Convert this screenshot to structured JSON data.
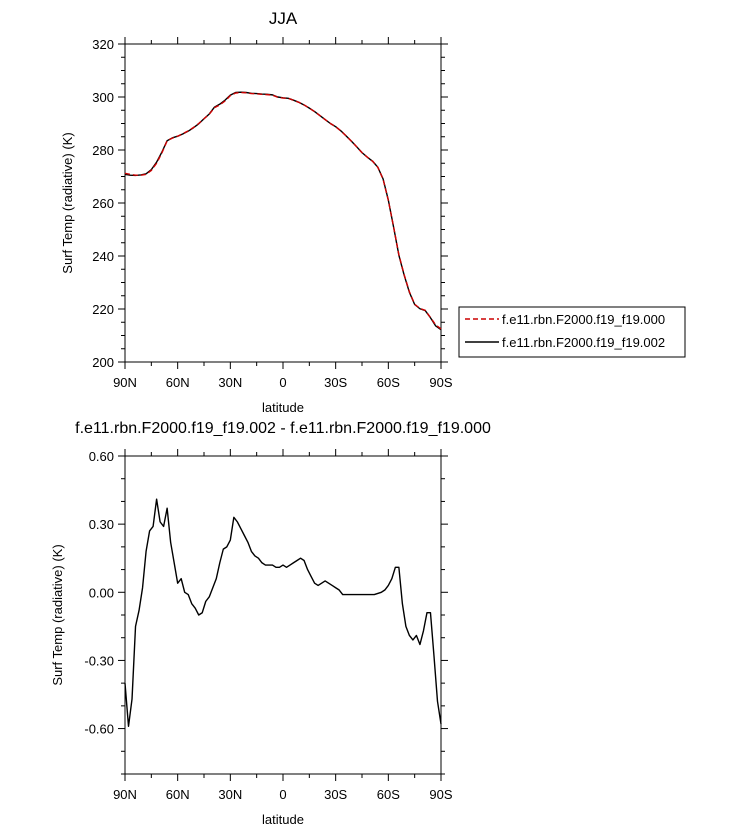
{
  "chart_data": [
    {
      "type": "line",
      "title": "JJA",
      "xlabel": "latitude",
      "ylabel": "Surf Temp (radiative) (K)",
      "xlim": [
        90,
        -90
      ],
      "ylim": [
        200,
        320
      ],
      "x_ticks": [
        90,
        60,
        30,
        0,
        -30,
        -60,
        -90
      ],
      "x_tick_labels": [
        "90N",
        "60N",
        "30N",
        "0",
        "30S",
        "60S",
        "90S"
      ],
      "y_ticks": [
        200,
        220,
        240,
        260,
        280,
        300,
        320
      ],
      "y_tick_labels": [
        "200",
        "220",
        "240",
        "260",
        "280",
        "300",
        "320"
      ],
      "legend_position": "right",
      "series": [
        {
          "name": "f.e11.rbn.F2000.f19_f19.000",
          "color": "#cc0000",
          "dash": "dashed",
          "x": [
            90,
            87,
            84,
            81,
            78,
            75,
            72,
            69,
            66,
            63,
            60,
            57,
            54,
            51,
            48,
            45,
            42,
            39,
            36,
            33,
            30,
            27,
            24,
            21,
            18,
            15,
            12,
            9,
            6,
            3,
            0,
            -3,
            -6,
            -9,
            -12,
            -15,
            -18,
            -21,
            -24,
            -27,
            -30,
            -33,
            -36,
            -39,
            -42,
            -45,
            -48,
            -51,
            -54,
            -57,
            -60,
            -63,
            -66,
            -69,
            -72,
            -75,
            -78,
            -81,
            -84,
            -87,
            -90
          ],
          "y": [
            271.2,
            270.8,
            270.5,
            270.5,
            270.8,
            272.3,
            275.0,
            278.9,
            283.5,
            284.5,
            285.2,
            286.2,
            287.2,
            288.5,
            290.0,
            291.8,
            293.5,
            296.0,
            297.0,
            298.5,
            300.5,
            301.5,
            301.7,
            301.6,
            301.3,
            301.2,
            301.0,
            300.9,
            300.7,
            299.9,
            299.6,
            299.5,
            298.8,
            298.0,
            297.0,
            295.8,
            294.5,
            293.0,
            291.5,
            290.0,
            288.8,
            287.2,
            285.3,
            283.3,
            281.2,
            279.0,
            277.3,
            275.8,
            273.5,
            269.0,
            261.0,
            251.0,
            240.5,
            233.0,
            226.5,
            221.8,
            220.2,
            219.5,
            216.8,
            214.0,
            212.5
          ]
        },
        {
          "name": "f.e11.rbn.F2000.f19_f19.002",
          "color": "#000000",
          "dash": "solid",
          "x": [
            90,
            87,
            84,
            81,
            78,
            75,
            72,
            69,
            66,
            63,
            60,
            57,
            54,
            51,
            48,
            45,
            42,
            39,
            36,
            33,
            30,
            27,
            24,
            21,
            18,
            15,
            12,
            9,
            6,
            3,
            0,
            -3,
            -6,
            -9,
            -12,
            -15,
            -18,
            -21,
            -24,
            -27,
            -30,
            -33,
            -36,
            -39,
            -42,
            -45,
            -48,
            -51,
            -54,
            -57,
            -60,
            -63,
            -66,
            -69,
            -72,
            -75,
            -78,
            -81,
            -84,
            -87,
            -90
          ],
          "y": [
            270.8,
            270.5,
            270.4,
            270.6,
            271.0,
            272.6,
            275.4,
            279.2,
            283.5,
            284.6,
            285.2,
            286.1,
            287.1,
            288.4,
            289.9,
            291.8,
            293.6,
            296.2,
            297.3,
            298.8,
            300.7,
            301.7,
            301.8,
            301.7,
            301.4,
            301.3,
            301.1,
            301.0,
            300.8,
            300.0,
            299.7,
            299.5,
            298.8,
            298.0,
            297.0,
            295.8,
            294.5,
            293.0,
            291.5,
            290.0,
            288.8,
            287.2,
            285.3,
            283.3,
            281.2,
            279.0,
            277.3,
            275.8,
            273.5,
            269.1,
            261.1,
            250.9,
            240.3,
            232.8,
            226.3,
            221.7,
            220.1,
            219.4,
            216.7,
            213.6,
            212.2
          ]
        }
      ]
    },
    {
      "type": "line",
      "title": "f.e11.rbn.F2000.f19_f19.002 - f.e11.rbn.F2000.f19_f19.000",
      "xlabel": "latitude",
      "ylabel": "Surf Temp (radiative) (K)",
      "xlim": [
        90,
        -90
      ],
      "ylim": [
        -0.8,
        0.6
      ],
      "x_ticks": [
        90,
        60,
        30,
        0,
        -30,
        -60,
        -90
      ],
      "x_tick_labels": [
        "90N",
        "60N",
        "30N",
        "0",
        "30S",
        "60S",
        "90S"
      ],
      "y_ticks": [
        -0.6,
        -0.3,
        0.0,
        0.3,
        0.6
      ],
      "y_tick_labels": [
        "-0.60",
        "-0.30",
        "0.00",
        "0.30",
        "0.60"
      ],
      "series": [
        {
          "color": "#000000",
          "dash": "solid",
          "x": [
            90,
            88,
            86,
            84,
            82,
            80,
            78,
            76,
            74,
            72,
            70,
            68,
            66,
            64,
            62,
            60,
            58,
            56,
            54,
            52,
            50,
            48,
            46,
            44,
            42,
            40,
            38,
            36,
            34,
            32,
            30,
            28,
            26,
            24,
            22,
            20,
            18,
            16,
            14,
            12,
            10,
            8,
            6,
            4,
            2,
            0,
            -2,
            -4,
            -6,
            -8,
            -10,
            -12,
            -14,
            -16,
            -18,
            -20,
            -22,
            -24,
            -26,
            -28,
            -30,
            -32,
            -34,
            -36,
            -38,
            -40,
            -42,
            -44,
            -46,
            -48,
            -50,
            -52,
            -54,
            -56,
            -58,
            -60,
            -62,
            -64,
            -66,
            -68,
            -70,
            -72,
            -74,
            -76,
            -78,
            -80,
            -82,
            -84,
            -86,
            -88,
            -90
          ],
          "y": [
            -0.4,
            -0.59,
            -0.47,
            -0.15,
            -0.08,
            0.02,
            0.18,
            0.27,
            0.29,
            0.41,
            0.31,
            0.29,
            0.37,
            0.22,
            0.13,
            0.04,
            0.06,
            0.0,
            -0.01,
            -0.05,
            -0.07,
            -0.1,
            -0.09,
            -0.04,
            -0.02,
            0.02,
            0.06,
            0.13,
            0.19,
            0.2,
            0.23,
            0.33,
            0.31,
            0.28,
            0.25,
            0.22,
            0.18,
            0.16,
            0.15,
            0.13,
            0.12,
            0.12,
            0.12,
            0.11,
            0.11,
            0.12,
            0.11,
            0.12,
            0.13,
            0.14,
            0.15,
            0.14,
            0.1,
            0.07,
            0.04,
            0.03,
            0.04,
            0.05,
            0.04,
            0.03,
            0.02,
            0.01,
            -0.01,
            -0.01,
            -0.01,
            -0.01,
            -0.01,
            -0.01,
            -0.01,
            -0.01,
            -0.01,
            -0.01,
            -0.005,
            0.0,
            0.01,
            0.03,
            0.06,
            0.11,
            0.11,
            -0.05,
            -0.15,
            -0.19,
            -0.21,
            -0.19,
            -0.23,
            -0.17,
            -0.09,
            -0.09,
            -0.28,
            -0.48,
            -0.58
          ]
        }
      ]
    }
  ]
}
